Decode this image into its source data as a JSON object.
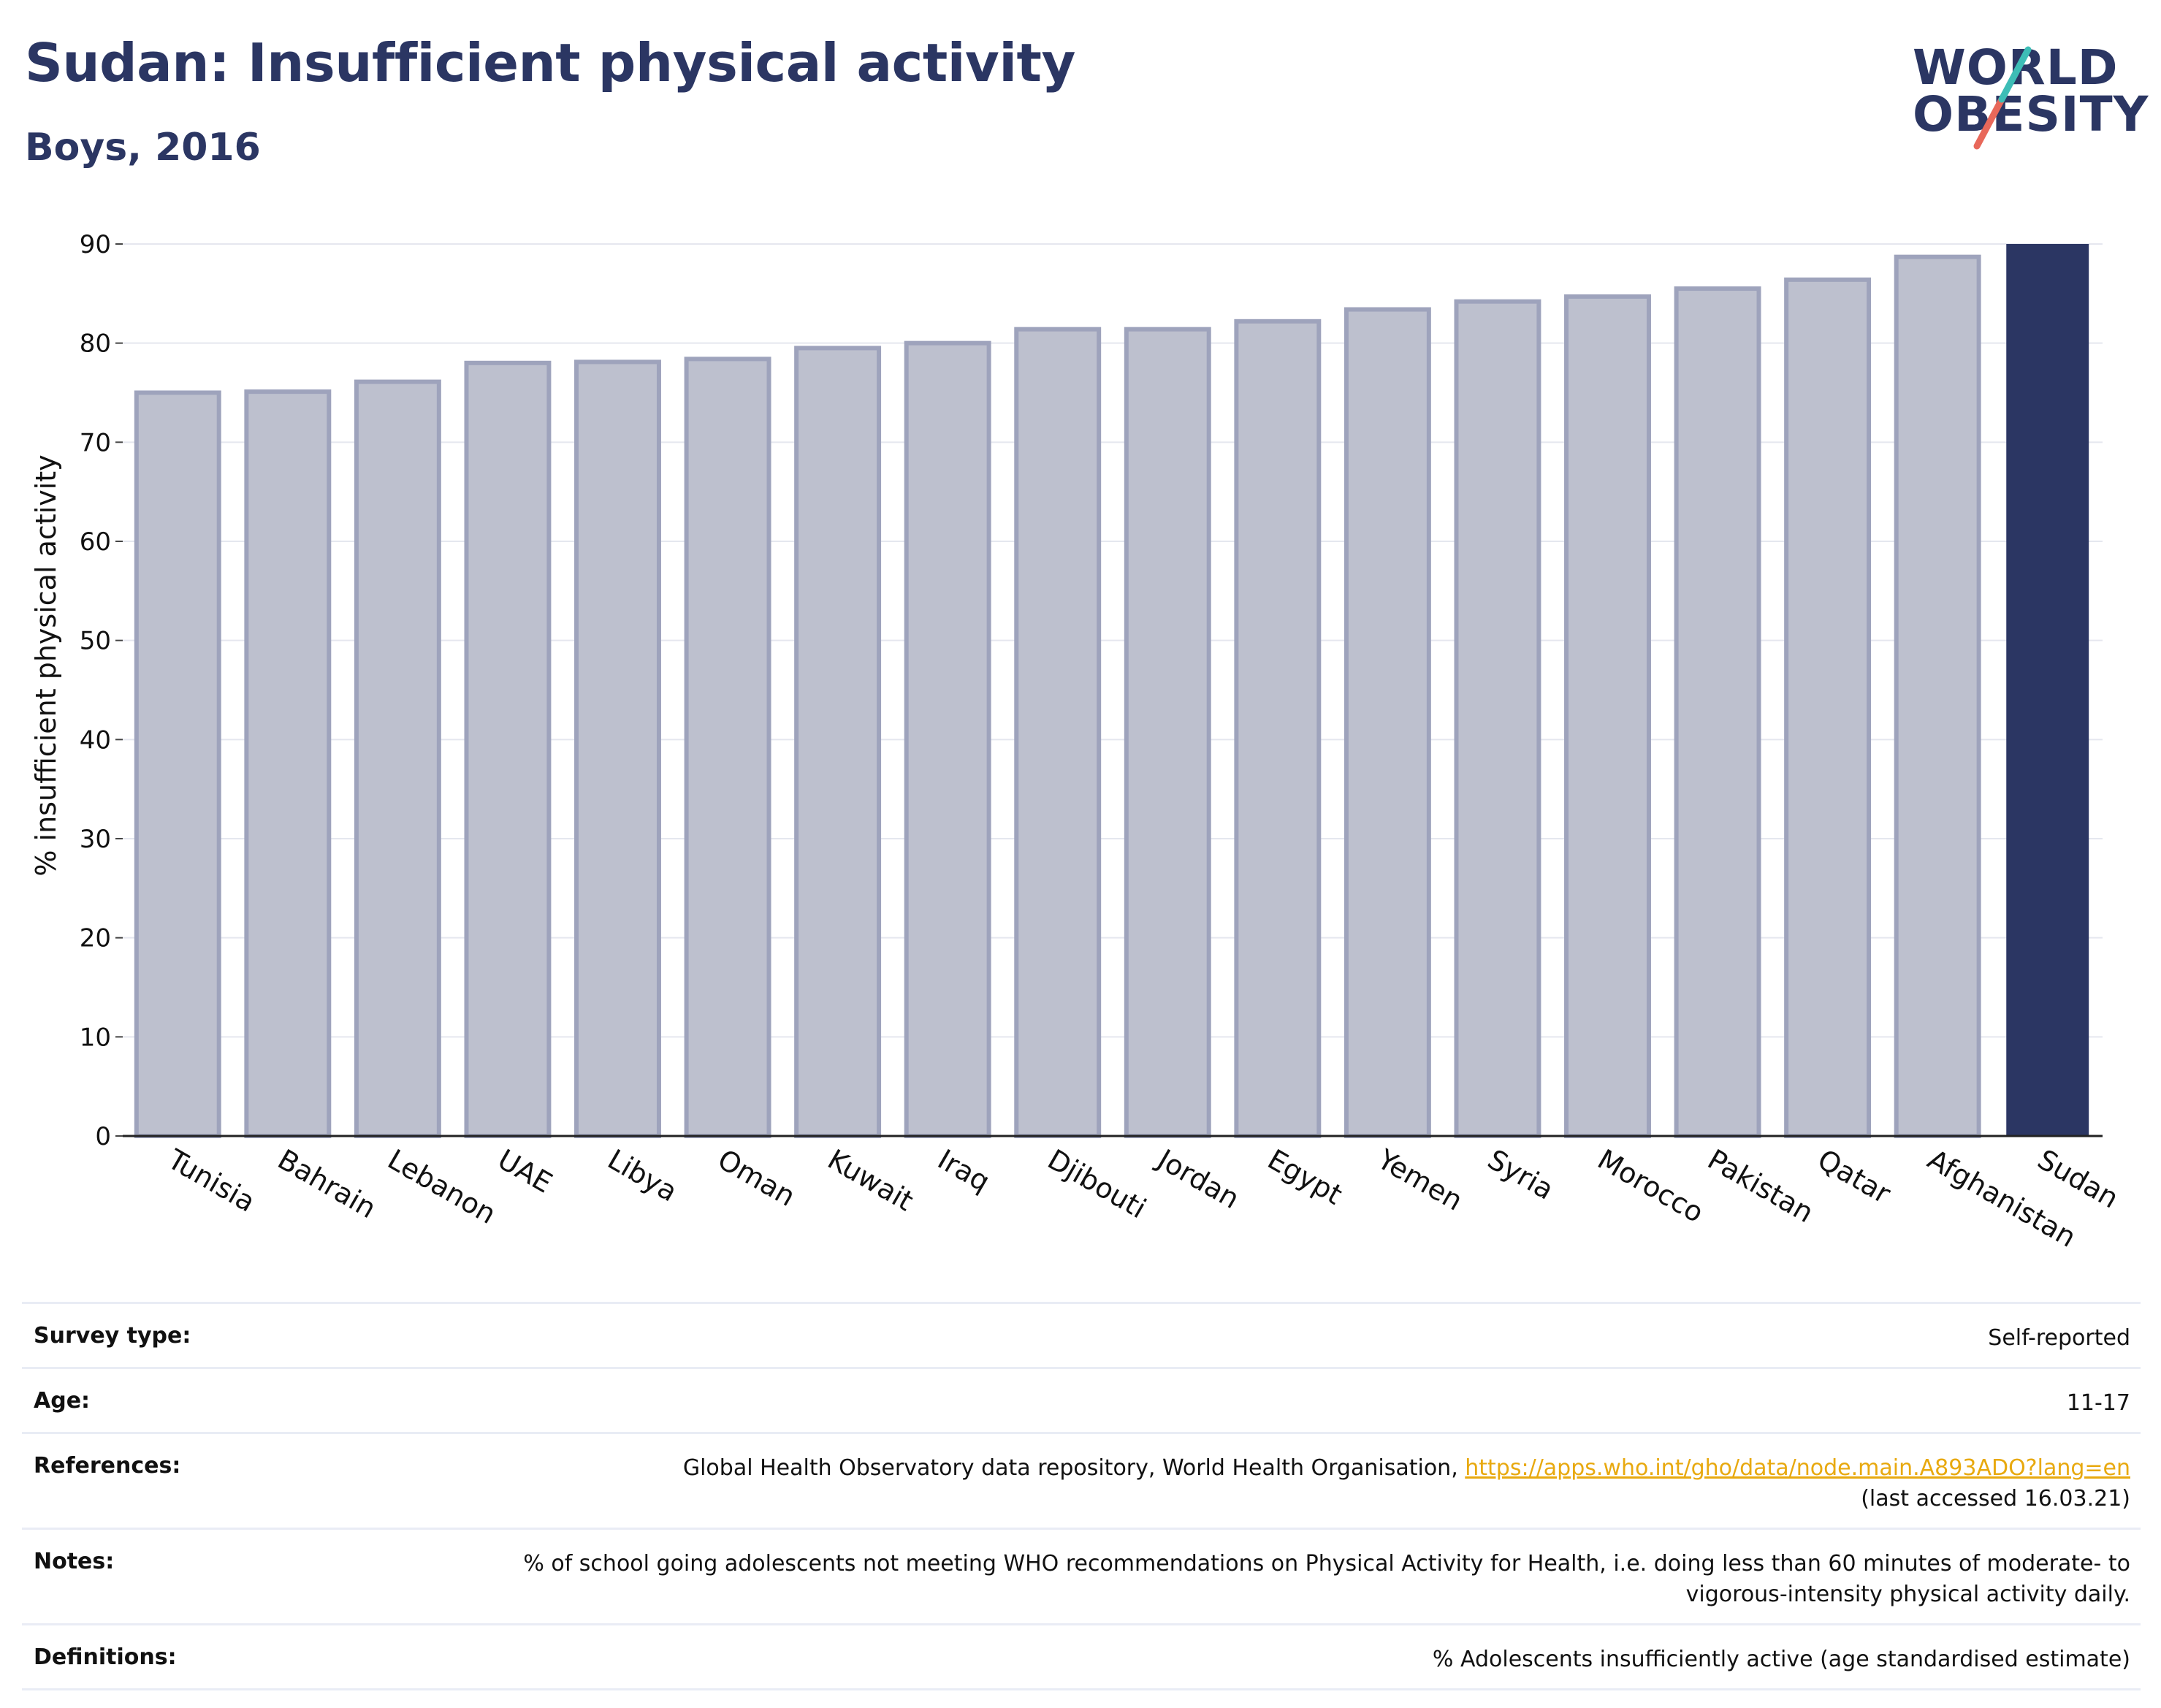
{
  "header": {
    "title": "Sudan: Insufficient physical activity",
    "subtitle": "Boys, 2016"
  },
  "logo": {
    "line1": "WORLD",
    "line2": "OBESITY",
    "slash_color_top": "#3dbdb6",
    "slash_color_bottom": "#e8685a"
  },
  "colors": {
    "primary": "#2b3663",
    "bar_fill": "#bdc0ce",
    "bar_stroke": "#9ea3bc",
    "highlight": "#2b3663",
    "link": "#e8a90f"
  },
  "chart_data": {
    "type": "bar",
    "ylabel": "% insufficient physical activity",
    "ylim": [
      0,
      90
    ],
    "yticks": [
      0,
      10,
      20,
      30,
      40,
      50,
      60,
      70,
      80,
      90
    ],
    "grid": true,
    "categories": [
      "Tunisia",
      "Bahrain",
      "Lebanon",
      "UAE",
      "Libya",
      "Oman",
      "Kuwait",
      "Iraq",
      "Djibouti",
      "Jordan",
      "Egypt",
      "Yemen",
      "Syria",
      "Morocco",
      "Pakistan",
      "Qatar",
      "Afghanistan",
      "Sudan"
    ],
    "values": [
      75.0,
      75.1,
      76.1,
      78.0,
      78.1,
      78.4,
      79.5,
      80.0,
      81.4,
      81.4,
      82.2,
      83.4,
      84.2,
      84.7,
      85.5,
      86.4,
      88.7,
      90.0
    ],
    "highlight": "Sudan"
  },
  "info": {
    "rows": [
      {
        "label": "Survey type:",
        "value": "Self-reported"
      },
      {
        "label": "Age:",
        "value": "11-17"
      },
      {
        "label": "References:",
        "value": "Global Health Observatory data repository, World Health Organisation, ",
        "link": "https://apps.who.int/gho/data/node.main.A893ADO?lang=en",
        "value2": "(last accessed 16.03.21)"
      },
      {
        "label": "Notes:",
        "value": "% of school going adolescents not meeting WHO recommendations on Physical Activity for Health, i.e. doing less than 60 minutes of moderate- to vigorous-intensity physical activity daily."
      },
      {
        "label": "Definitions:",
        "value": "% Adolescents insufficiently active (age standardised estimate)"
      }
    ]
  }
}
